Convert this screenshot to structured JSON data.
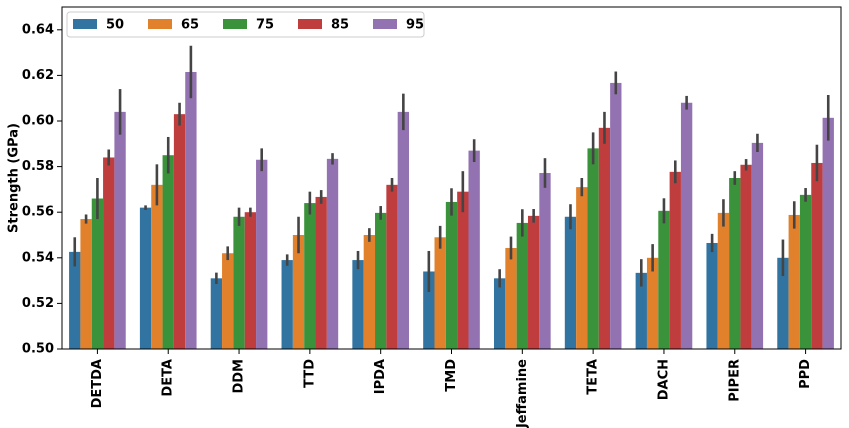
{
  "chart_data": {
    "type": "bar",
    "ylabel": "Strength (GPa)",
    "categories": [
      "DETDA",
      "DETA",
      "DDM",
      "TTD",
      "IPDA",
      "TMD",
      "Jeffamine",
      "TETA",
      "DACH",
      "PIPER",
      "PPD"
    ],
    "series": [
      {
        "name": "50",
        "color": "#3274a1",
        "values": [
          0.5426,
          0.562,
          0.531,
          0.539,
          0.539,
          0.534,
          0.531,
          0.558,
          0.5334,
          0.5465,
          0.54
        ],
        "errors": [
          0.0064,
          0.001,
          0.0025,
          0.0025,
          0.004,
          0.009,
          0.004,
          0.0055,
          0.006,
          0.004,
          0.008
        ]
      },
      {
        "name": "65",
        "color": "#e1812c",
        "values": [
          0.557,
          0.572,
          0.542,
          0.55,
          0.55,
          0.549,
          0.5443,
          0.571,
          0.54,
          0.5597,
          0.5588
        ],
        "errors": [
          0.002,
          0.009,
          0.003,
          0.008,
          0.003,
          0.005,
          0.005,
          0.004,
          0.006,
          0.006,
          0.006
        ]
      },
      {
        "name": "75",
        "color": "#3a923a",
        "values": [
          0.566,
          0.585,
          0.558,
          0.564,
          0.5597,
          0.5645,
          0.5553,
          0.588,
          0.5606,
          0.575,
          0.5676
        ],
        "errors": [
          0.009,
          0.008,
          0.004,
          0.005,
          0.003,
          0.006,
          0.006,
          0.007,
          0.0055,
          0.003,
          0.003
        ]
      },
      {
        "name": "85",
        "color": "#c03d3e",
        "values": [
          0.584,
          0.603,
          0.56,
          0.5667,
          0.572,
          0.569,
          0.5584,
          0.597,
          0.5777,
          0.5808,
          0.5816
        ],
        "errors": [
          0.0035,
          0.005,
          0.002,
          0.003,
          0.003,
          0.009,
          0.003,
          0.007,
          0.005,
          0.0025,
          0.008
        ]
      },
      {
        "name": "95",
        "color": "#9372b2",
        "values": [
          0.604,
          0.6215,
          0.583,
          0.5834,
          0.604,
          0.587,
          0.5772,
          0.6167,
          0.608,
          0.5904,
          0.6014
        ],
        "errors": [
          0.01,
          0.0115,
          0.005,
          0.0025,
          0.008,
          0.005,
          0.0065,
          0.005,
          0.003,
          0.004,
          0.01
        ]
      }
    ],
    "ylim": [
      0.5,
      0.65
    ],
    "yticks": [
      {
        "value": 0.5,
        "label": "0.50"
      },
      0.52,
      0.54,
      0.56,
      0.58,
      {
        "value": 0.6,
        "label": "0.60"
      },
      0.62,
      0.64
    ],
    "legend": "upper left"
  }
}
